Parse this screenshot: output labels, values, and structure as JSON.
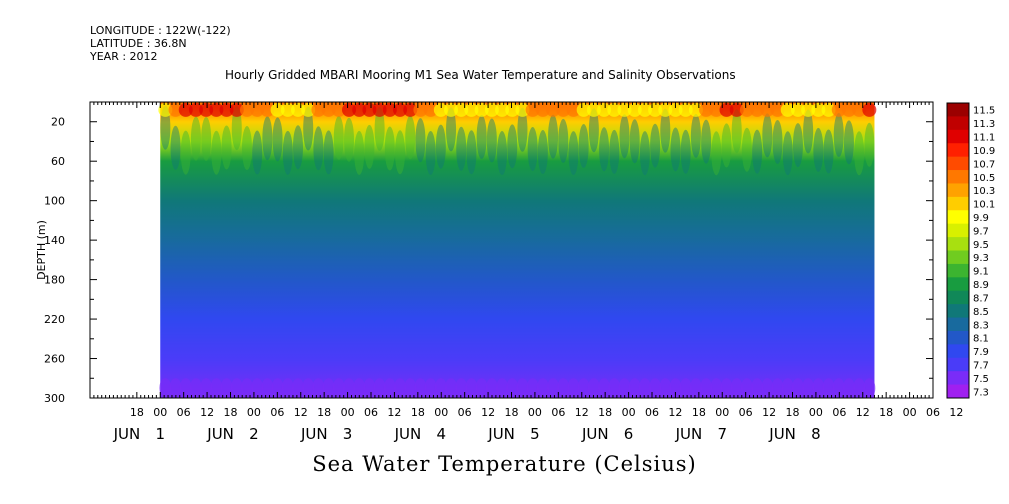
{
  "header": {
    "longitude": "LONGITUDE : 122W(-122)",
    "latitude": "LATITUDE : 36.8N",
    "year": "YEAR : 2012",
    "title": "Hourly Gridded MBARI Mooring M1 Sea Water Temperature and Salinity Observations"
  },
  "chart_data": {
    "type": "heatmap",
    "title": "Hourly Gridded MBARI Mooring M1 Sea Water Temperature and Salinity Observations",
    "xlabel": "",
    "ylabel": "DEPTH (m)",
    "bottom_title": "Sea Water Temperature (Celsius)",
    "x_axis": {
      "hour_ticks": [
        "18",
        "00",
        "06",
        "12",
        "18",
        "00",
        "06",
        "12",
        "18",
        "00",
        "06",
        "12",
        "18",
        "00",
        "06",
        "12",
        "18",
        "00",
        "06",
        "12",
        "18",
        "00",
        "06",
        "12",
        "18",
        "00",
        "06",
        "12",
        "18",
        "00",
        "06",
        "12",
        "18",
        "00",
        "06",
        "12"
      ],
      "day_labels": [
        {
          "month": "JUN",
          "day": "1"
        },
        {
          "month": "JUN",
          "day": "2"
        },
        {
          "month": "JUN",
          "day": "3"
        },
        {
          "month": "JUN",
          "day": "4"
        },
        {
          "month": "JUN",
          "day": "5"
        },
        {
          "month": "JUN",
          "day": "6"
        },
        {
          "month": "JUN",
          "day": "7"
        },
        {
          "month": "JUN",
          "day": "8"
        }
      ],
      "data_start": "2012-06-01T00:00",
      "data_end": "2012-06-08T15:00"
    },
    "y_axis": {
      "ylim": [
        300,
        0
      ],
      "tick_labels": [
        "20",
        "60",
        "100",
        "140",
        "180",
        "220",
        "260",
        "300"
      ]
    },
    "colorbar": {
      "labels": [
        "11.5",
        "11.3",
        "11.1",
        "10.9",
        "10.7",
        "10.5",
        "10.3",
        "10.1",
        "9.9",
        "9.7",
        "9.5",
        "9.3",
        "9.1",
        "8.9",
        "8.7",
        "8.5",
        "8.3",
        "8.1",
        "7.9",
        "7.7",
        "7.5",
        "7.3"
      ],
      "colors": [
        "#9b0000",
        "#c00000",
        "#e00000",
        "#ff2000",
        "#ff4b00",
        "#ff7800",
        "#ffa200",
        "#ffcd00",
        "#ffff00",
        "#d8f000",
        "#a8e010",
        "#70cc20",
        "#3cb430",
        "#189c40",
        "#108858",
        "#107878",
        "#186a9e",
        "#2258c8",
        "#3048f0",
        "#4a3cf8",
        "#7a2cf8",
        "#a020f0"
      ],
      "range": [
        7.3,
        11.5
      ]
    },
    "profile": {
      "depths": [
        5,
        20,
        40,
        60,
        100,
        140,
        180,
        220,
        260,
        300
      ],
      "mean_temperatures": [
        10.6,
        10.2,
        9.4,
        8.9,
        8.5,
        8.3,
        8.1,
        7.95,
        7.8,
        7.6
      ]
    }
  }
}
